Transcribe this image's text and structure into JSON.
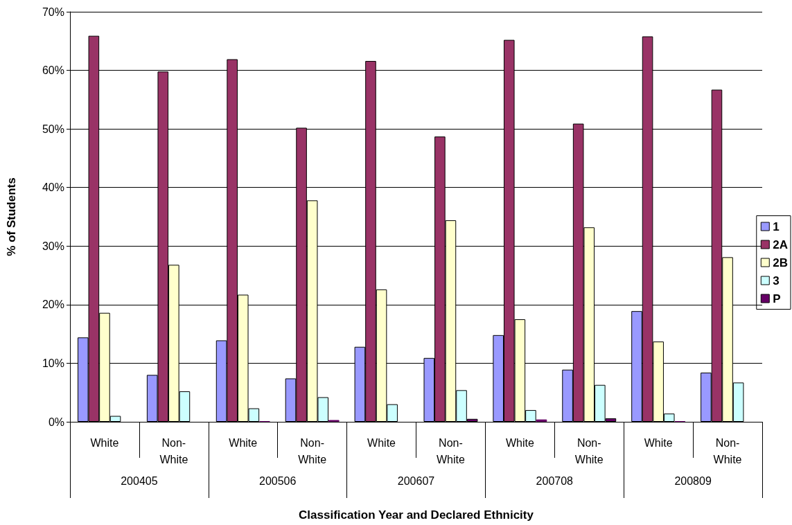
{
  "chart_data": {
    "type": "bar",
    "xlabel": "Classification Year and Declared Ethnicity",
    "ylabel": "% of Students",
    "categories": [
      "White",
      "Non-White",
      "White",
      "Non-White",
      "White",
      "Non-White",
      "White",
      "Non-White",
      "White",
      "Non-White"
    ],
    "annotations": [
      "200405",
      "200506",
      "200607",
      "200708",
      "200809"
    ],
    "series": [
      {
        "name": "1",
        "color": "#9999ff",
        "values": [
          14.4,
          8.0,
          13.9,
          7.4,
          12.8,
          10.9,
          14.8,
          8.9,
          18.9,
          8.4
        ]
      },
      {
        "name": "2A",
        "color": "#993366",
        "values": [
          65.9,
          59.8,
          61.9,
          50.2,
          61.6,
          48.7,
          65.2,
          50.9,
          65.8,
          56.7
        ]
      },
      {
        "name": "2B",
        "color": "#ffffcc",
        "values": [
          18.6,
          26.8,
          21.7,
          37.8,
          22.6,
          34.4,
          17.5,
          33.2,
          13.7,
          28.1
        ]
      },
      {
        "name": "3",
        "color": "#ccffff",
        "values": [
          1.0,
          5.2,
          2.3,
          4.2,
          3.0,
          5.4,
          2.0,
          6.3,
          1.4,
          6.7
        ]
      },
      {
        "name": "P",
        "color": "#660066",
        "values": [
          0,
          0,
          0.1,
          0.3,
          0,
          0.5,
          0.4,
          0.6,
          0.1,
          0
        ]
      }
    ],
    "ylim": [
      0,
      70
    ],
    "yticks": [
      {
        "value": 0,
        "label": "0%"
      },
      {
        "value": 10,
        "label": "10%"
      },
      {
        "value": 20,
        "label": "20%"
      },
      {
        "value": 30,
        "label": "30%"
      },
      {
        "value": 40,
        "label": "40%"
      },
      {
        "value": 50,
        "label": "50%"
      },
      {
        "value": 60,
        "label": "60%"
      },
      {
        "value": 70,
        "label": "70%"
      }
    ],
    "grid": "y",
    "legend": "right"
  }
}
